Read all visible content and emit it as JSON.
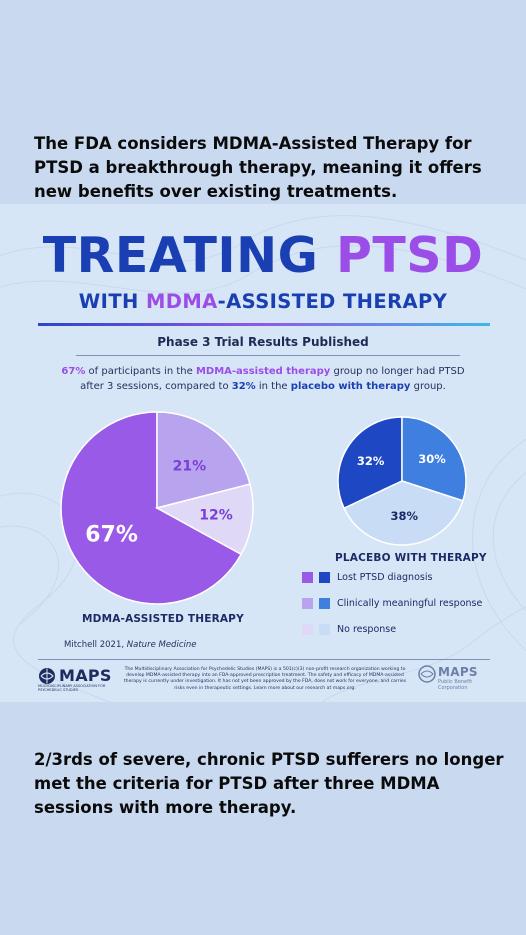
{
  "captions": {
    "top": "The FDA considers MDMA-Assisted Therapy for PTSD a breakthrough therapy, meaning it offers new benefits over existing treatments.",
    "bottom": "2/3rds of severe, chronic PTSD sufferers no longer met the criteria for PTSD after three MDMA sessions with more therapy."
  },
  "infographic": {
    "title_part1": "TREATING ",
    "title_part2": "PTSD",
    "subtitle_part1": "WITH ",
    "subtitle_part2": "MDMA",
    "subtitle_part3": "-ASSISTED THERAPY",
    "phase": "Phase 3 Trial Results Published",
    "summary": {
      "s1": "67%",
      "s2": " of participants in the ",
      "s3": "MDMA-assisted therapy",
      "s4": " group no longer had PTSD after 3 sessions, compared to ",
      "s5": "32%",
      "s6": " in the ",
      "s7": "placebo with therapy",
      "s8": " group."
    },
    "citation_author": "Mitchell 2021, ",
    "citation_journal": "Nature Medicine",
    "footer": {
      "maps_left": "MAPS",
      "maps_left_sub": "MULTIDISCIPLINARY ASSOCIATION FOR PSYCHEDELIC STUDIES",
      "fineprint": "The Multidisciplinary Association for Psychedelic Studies (MAPS) is a 501(c)(3) non-profit research organization working to develop MDMA-assisted therapy into an FDA-approved prescription treatment. The safety and efficacy of MDMA-assisted therapy is currently under investigation. It has not yet been approved by the FDA, does not work for everyone, and carries risks even in therapeutic settings. Learn more about our research at maps.org.",
      "maps_right": "MAPS",
      "maps_right_sub1": "Public Benefit",
      "maps_right_sub2": "Corporation"
    }
  },
  "chart_data": [
    {
      "type": "pie",
      "title": "MDMA-ASSISTED THERAPY",
      "labels": [
        "Lost PTSD diagnosis",
        "Clinically meaningful response",
        "No response"
      ],
      "values": [
        67,
        21,
        12
      ],
      "value_labels": [
        "67%",
        "21%",
        "12%"
      ],
      "colors": [
        "#9a5ae8",
        "#b8a4ee",
        "#e0d8f7"
      ],
      "legend": "shared, right"
    },
    {
      "type": "pie",
      "title": "PLACEBO WITH THERAPY",
      "labels": [
        "Lost PTSD diagnosis",
        "Clinically meaningful response",
        "No response"
      ],
      "values": [
        32,
        30,
        38
      ],
      "value_labels": [
        "32%",
        "30%",
        "38%"
      ],
      "colors": [
        "#1e47c4",
        "#3f7fe0",
        "#c8dcf6"
      ],
      "legend": "shared, right"
    }
  ],
  "legend": {
    "items": [
      {
        "label": "Lost PTSD diagnosis",
        "mdma_color": "#9a5ae8",
        "placebo_color": "#1e47c4"
      },
      {
        "label": "Clinically meaningful response",
        "mdma_color": "#b8a4ee",
        "placebo_color": "#3f7fe0"
      },
      {
        "label": "No response",
        "mdma_color": "#e0d8f7",
        "placebo_color": "#c8dcf6"
      }
    ]
  }
}
